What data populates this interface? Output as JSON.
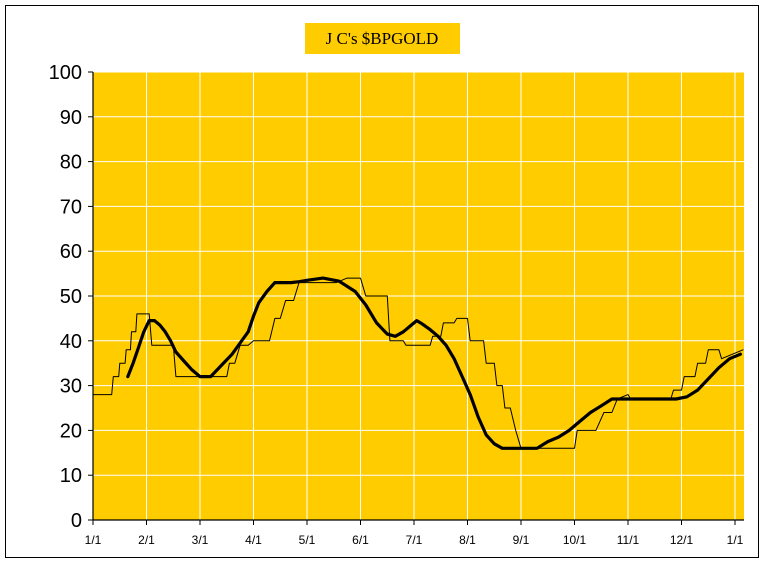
{
  "chart_data": {
    "type": "line",
    "title": "J C's $BPGOLD",
    "xlabel": "",
    "ylabel": "",
    "ylim": [
      0,
      100
    ],
    "xlim": [
      0,
      12.2
    ],
    "yticks": [
      "0",
      "10",
      "20",
      "30",
      "40",
      "50",
      "60",
      "70",
      "80",
      "90",
      "100"
    ],
    "xticks": [
      "1/1",
      "2/1",
      "3/1",
      "4/1",
      "5/1",
      "6/1",
      "7/1",
      "8/1",
      "9/1",
      "10/1",
      "11/1",
      "12/1",
      "1/1"
    ],
    "grid": true,
    "legend": "none",
    "colors": {
      "plot_background": "#FFCC00",
      "title_background": "#FFCC00",
      "grid": "#FFFFFF",
      "series": "#000000"
    },
    "series": [
      {
        "x": [
          0,
          0.35,
          0.38,
          0.48,
          0.5,
          0.6,
          0.62,
          0.7,
          0.72,
          0.8,
          0.82,
          1.05,
          1.1,
          1.25,
          1.35,
          1.5,
          1.55,
          1.7,
          1.75,
          2.5,
          2.55,
          2.65,
          2.75,
          2.9,
          3.0,
          3.3,
          3.4,
          3.5,
          3.6,
          3.75,
          3.85,
          4.0,
          4.25,
          4.3,
          4.55,
          4.75,
          5.0,
          5.1,
          5.5,
          5.55,
          5.8,
          5.85,
          6.3,
          6.35,
          6.5,
          6.55,
          6.75,
          6.8,
          7.0,
          7.05,
          7.3,
          7.35,
          7.5,
          7.55,
          7.65,
          7.7,
          7.8,
          7.9,
          8.0,
          8.7,
          8.85,
          9.0,
          9.05,
          9.4,
          9.55,
          9.7,
          9.8,
          10.0,
          10.05,
          10.3,
          10.35,
          10.55,
          10.6,
          10.8,
          10.85,
          11.0,
          11.05,
          11.25,
          11.3,
          11.45,
          11.5,
          11.7,
          11.75,
          12.15
        ],
        "y": [
          28,
          28,
          32,
          32,
          35,
          35,
          38,
          38,
          42,
          42,
          46,
          46,
          39,
          39,
          39,
          39,
          32,
          32,
          32,
          32,
          35,
          35,
          39,
          39,
          40,
          40,
          45,
          45,
          49,
          49,
          53,
          53,
          53,
          53,
          53,
          54,
          54,
          50,
          50,
          40,
          40,
          39,
          39,
          41,
          41,
          44,
          44,
          45,
          45,
          40,
          40,
          35,
          35,
          30,
          30,
          25,
          25,
          20,
          16,
          16,
          16,
          16,
          20,
          20,
          24,
          24,
          27,
          28,
          27,
          27,
          27,
          27,
          27,
          27,
          29,
          29,
          32,
          32,
          35,
          35,
          38,
          38,
          36,
          38
        ]
      },
      {
        "x": [
          0.65,
          0.75,
          0.85,
          0.95,
          1.05,
          1.15,
          1.25,
          1.35,
          1.45,
          1.55,
          1.7,
          1.85,
          2.0,
          2.2,
          2.4,
          2.6,
          2.75,
          2.9,
          3.0,
          3.1,
          3.25,
          3.4,
          3.55,
          3.7,
          3.85,
          4.0,
          4.3,
          4.6,
          4.9,
          5.1,
          5.3,
          5.5,
          5.65,
          5.8,
          5.95,
          6.05,
          6.15,
          6.3,
          6.45,
          6.6,
          6.75,
          6.9,
          7.05,
          7.2,
          7.35,
          7.5,
          7.65,
          7.8,
          7.95,
          8.1,
          8.3,
          8.5,
          8.7,
          8.9,
          9.1,
          9.3,
          9.5,
          9.7,
          9.9,
          10.1,
          10.3,
          10.5,
          10.7,
          10.9,
          11.1,
          11.3,
          11.5,
          11.7,
          11.9,
          12.1
        ],
        "y": [
          32,
          35,
          38.5,
          42,
          44.5,
          44.5,
          43.5,
          42,
          40,
          37.5,
          35.5,
          33.5,
          32,
          32,
          34.5,
          37,
          39.5,
          42,
          45.5,
          48.5,
          51,
          53,
          53,
          53,
          53.2,
          53.5,
          54,
          53.3,
          51,
          48,
          44,
          41.5,
          41,
          42,
          43.5,
          44.5,
          43.8,
          42.5,
          41,
          39,
          36,
          32,
          28,
          23,
          19,
          17,
          16,
          16,
          16,
          16,
          16,
          17.5,
          18.5,
          20,
          22,
          24,
          25.5,
          27,
          27,
          27,
          27,
          27,
          27,
          27,
          27.5,
          29,
          31.5,
          34,
          36,
          37
        ]
      }
    ]
  }
}
